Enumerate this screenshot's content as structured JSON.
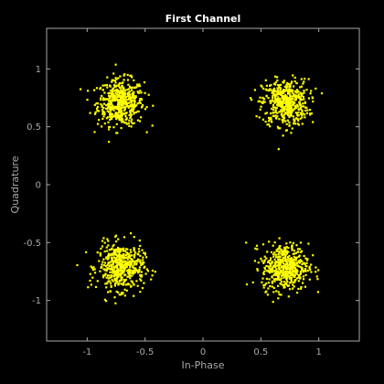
{
  "chart_data": {
    "type": "scatter",
    "title": "First Channel",
    "xlabel": "In-Phase",
    "ylabel": "Quadrature",
    "xlim": [
      -1.35,
      1.35
    ],
    "ylim": [
      -1.35,
      1.35
    ],
    "xticks": [
      -1,
      -0.5,
      0,
      0.5,
      1
    ],
    "xtick_labels": [
      "-1",
      "-0.5",
      "0",
      "0.5",
      "1"
    ],
    "yticks": [
      -1,
      -0.5,
      0,
      0.5,
      1
    ],
    "ytick_labels": [
      "-1",
      "-0.5",
      "0",
      "0.5",
      "1"
    ],
    "grid": false,
    "background": "#000000",
    "axis_color": "#a8a8a8",
    "point_color": "#ffff00",
    "clusters": [
      {
        "center_x": -0.71,
        "center_y": 0.71,
        "spread": 0.1,
        "count": 500
      },
      {
        "center_x": 0.71,
        "center_y": 0.71,
        "spread": 0.1,
        "count": 500
      },
      {
        "center_x": -0.71,
        "center_y": -0.71,
        "spread": 0.1,
        "count": 500
      },
      {
        "center_x": 0.71,
        "center_y": -0.71,
        "spread": 0.1,
        "count": 500
      }
    ]
  }
}
